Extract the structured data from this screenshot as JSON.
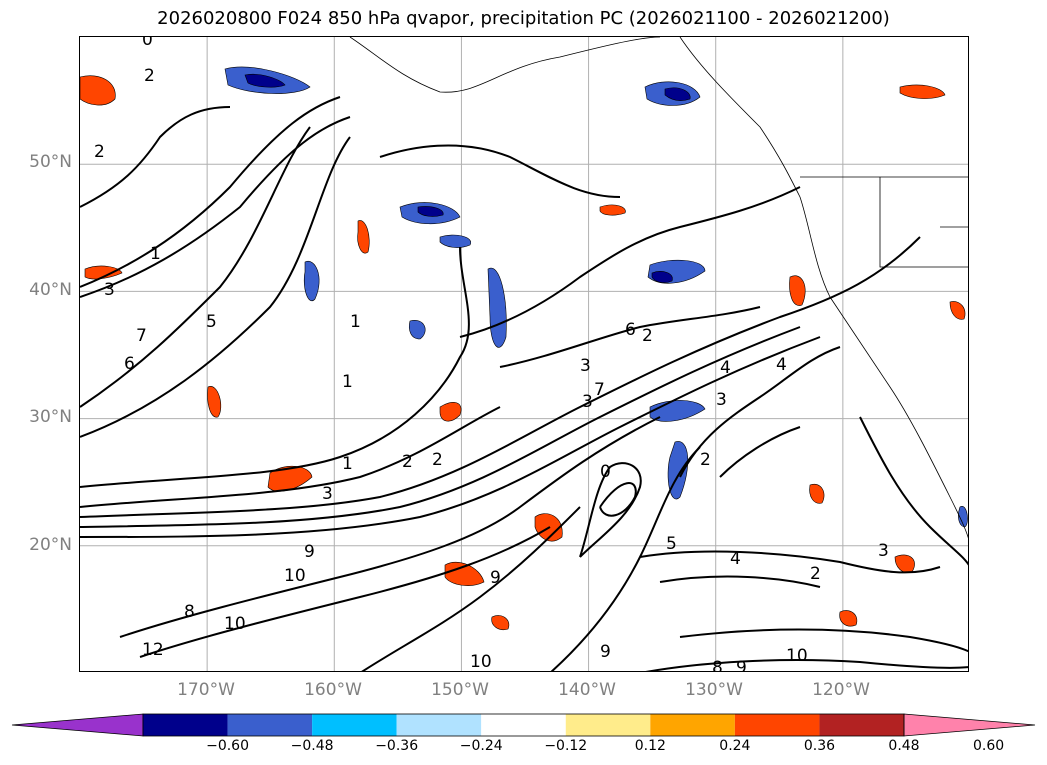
{
  "title": "2026020800 F024 850 hPa qvapor, precipitation PC (2026021100 - 2026021200)",
  "axes": {
    "lat_labels": [
      "50°N",
      "40°N",
      "30°N",
      "20°N"
    ],
    "lon_labels": [
      "170°W",
      "160°W",
      "150°W",
      "140°W",
      "130°W",
      "120°W"
    ],
    "lat_values": [
      50,
      40,
      30,
      20
    ],
    "lon_values": [
      -170,
      -160,
      -150,
      -140,
      -130,
      -120
    ],
    "lon_range": [
      -180,
      -110
    ],
    "lat_range": [
      10,
      60
    ],
    "grid": true
  },
  "colorbar": {
    "ticks": [
      "−0.60",
      "−0.48",
      "−0.36",
      "−0.24",
      "−0.12",
      "0.12",
      "0.24",
      "0.36",
      "0.48",
      "0.60"
    ],
    "colors": [
      "#9932cc",
      "#00008b",
      "#3a5fcd",
      "#00bfff",
      "#b0e2ff",
      "#ffffff",
      "#ffec8b",
      "#ffa500",
      "#ff4500",
      "#b22222",
      "#ff82ab"
    ],
    "extend": "both"
  },
  "contour_labels": [
    {
      "text": "0"
    },
    {
      "text": "2"
    },
    {
      "text": "2"
    },
    {
      "text": "1"
    },
    {
      "text": "3"
    },
    {
      "text": "5"
    },
    {
      "text": "7"
    },
    {
      "text": "6"
    },
    {
      "text": "1"
    },
    {
      "text": "1"
    },
    {
      "text": "2"
    },
    {
      "text": "1"
    },
    {
      "text": "2"
    },
    {
      "text": "3"
    },
    {
      "text": "7"
    },
    {
      "text": "4"
    },
    {
      "text": "3"
    },
    {
      "text": "2"
    },
    {
      "text": "4"
    },
    {
      "text": "3"
    },
    {
      "text": "2"
    },
    {
      "text": "9"
    },
    {
      "text": "10"
    },
    {
      "text": "8"
    },
    {
      "text": "10"
    },
    {
      "text": "12"
    },
    {
      "text": "9"
    },
    {
      "text": "10"
    },
    {
      "text": "9"
    },
    {
      "text": "8"
    },
    {
      "text": "10"
    },
    {
      "text": "9"
    },
    {
      "text": "2"
    },
    {
      "text": "3"
    },
    {
      "text": "3"
    },
    {
      "text": "5"
    },
    {
      "text": "4"
    },
    {
      "text": "0"
    },
    {
      "text": "6"
    }
  ]
}
